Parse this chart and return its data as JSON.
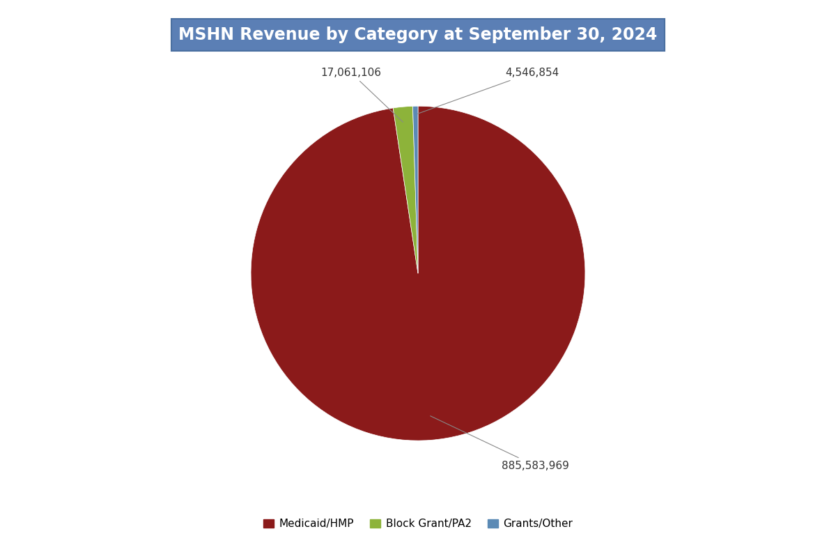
{
  "title": "MSHN Revenue by Category at September 30, 2024",
  "title_facecolor": "#5b7fb5",
  "title_edgecolor": "#4a6fa0",
  "title_textcolor": "white",
  "labels": [
    "Medicaid/HMP",
    "Block Grant/PA2",
    "Grants/Other"
  ],
  "values": [
    885583969,
    17061106,
    4546854
  ],
  "colors": [
    "#8b1a1a",
    "#8db33a",
    "#5b8ab5"
  ],
  "legend_labels": [
    "Medicaid/HMP",
    "Block Grant/PA2",
    "Grants/Other"
  ],
  "background_color": "#ffffff",
  "startangle": 90
}
